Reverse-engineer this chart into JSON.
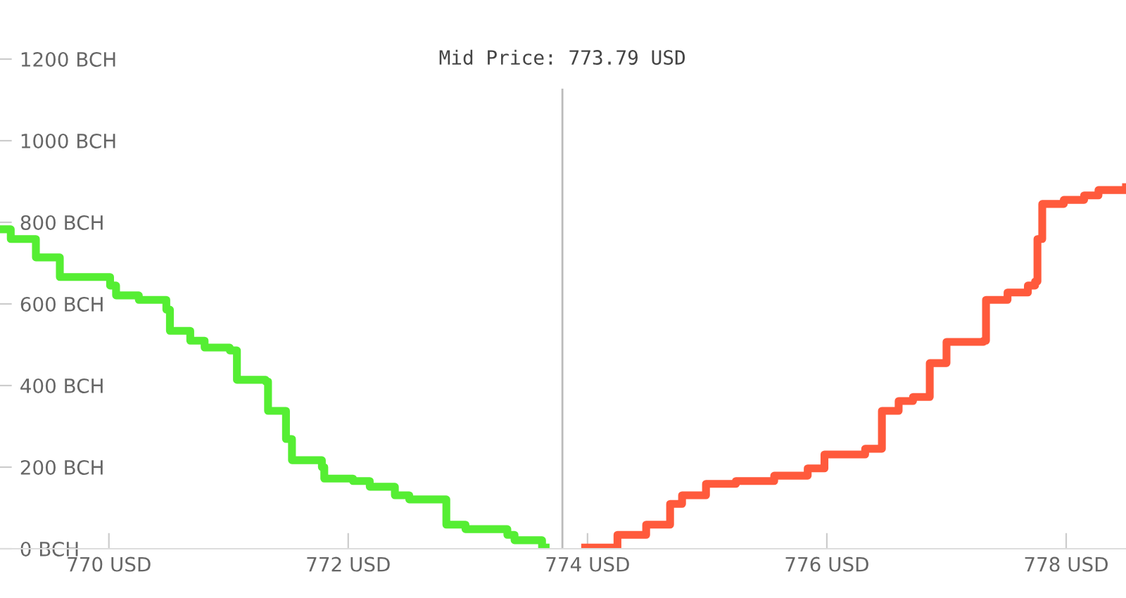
{
  "chart_data": {
    "type": "step",
    "series": [
      {
        "color": "#55ee33",
        "x": [
          769.09,
          769.18,
          769.39,
          769.59,
          770.01,
          770.06,
          770.25,
          770.48,
          770.51,
          770.68,
          770.8,
          771.01,
          771.07,
          771.31,
          771.33,
          771.48,
          771.53,
          771.78,
          771.8,
          772.04,
          772.18,
          772.39,
          772.51,
          772.82,
          772.98,
          773.33,
          773.39,
          773.62,
          773.65
        ],
        "values": [
          783,
          759,
          714,
          666,
          645,
          621,
          610,
          586,
          534,
          510,
          493,
          486,
          414,
          410,
          338,
          269,
          217,
          200,
          172,
          166,
          152,
          131,
          121,
          59,
          48,
          34,
          21,
          3,
          3
        ]
      },
      {
        "color": "#ff5a3c",
        "x": [
          773.98,
          774.25,
          774.49,
          774.69,
          774.79,
          774.99,
          775.24,
          775.56,
          775.84,
          775.98,
          776.32,
          776.46,
          776.6,
          776.72,
          776.86,
          777.0,
          777.31,
          777.33,
          777.51,
          777.68,
          777.74,
          777.76,
          777.8,
          777.98,
          778.15,
          778.27,
          778.5
        ],
        "values": [
          3,
          34,
          59,
          110,
          131,
          159,
          166,
          179,
          197,
          231,
          245,
          338,
          362,
          372,
          455,
          507,
          510,
          610,
          628,
          645,
          655,
          759,
          845,
          855,
          866,
          879,
          886
        ]
      }
    ],
    "xlim": [
      769.09,
      778.5
    ],
    "ylim": [
      0,
      1200
    ],
    "xticks": [
      {
        "value": 770,
        "label": "770 USD"
      },
      {
        "value": 772,
        "label": "772 USD"
      },
      {
        "value": 774,
        "label": "774 USD"
      },
      {
        "value": 776,
        "label": "776 USD"
      },
      {
        "value": 778,
        "label": "778 USD"
      }
    ],
    "yticks": [
      {
        "value": 0,
        "label": "0 BCH"
      },
      {
        "value": 200,
        "label": "200 BCH"
      },
      {
        "value": 400,
        "label": "400 BCH"
      },
      {
        "value": 600,
        "label": "600 BCH"
      },
      {
        "value": 800,
        "label": "800 BCH"
      },
      {
        "value": 1000,
        "label": "1000 BCH"
      },
      {
        "value": 1200,
        "label": "1200 BCH"
      }
    ],
    "ref_lines": [
      {
        "axis": "x",
        "value": 773.79,
        "label": "Mid Price: 773.79 USD",
        "color": "#bbbbbb"
      }
    ],
    "grid": false,
    "legend": false
  }
}
